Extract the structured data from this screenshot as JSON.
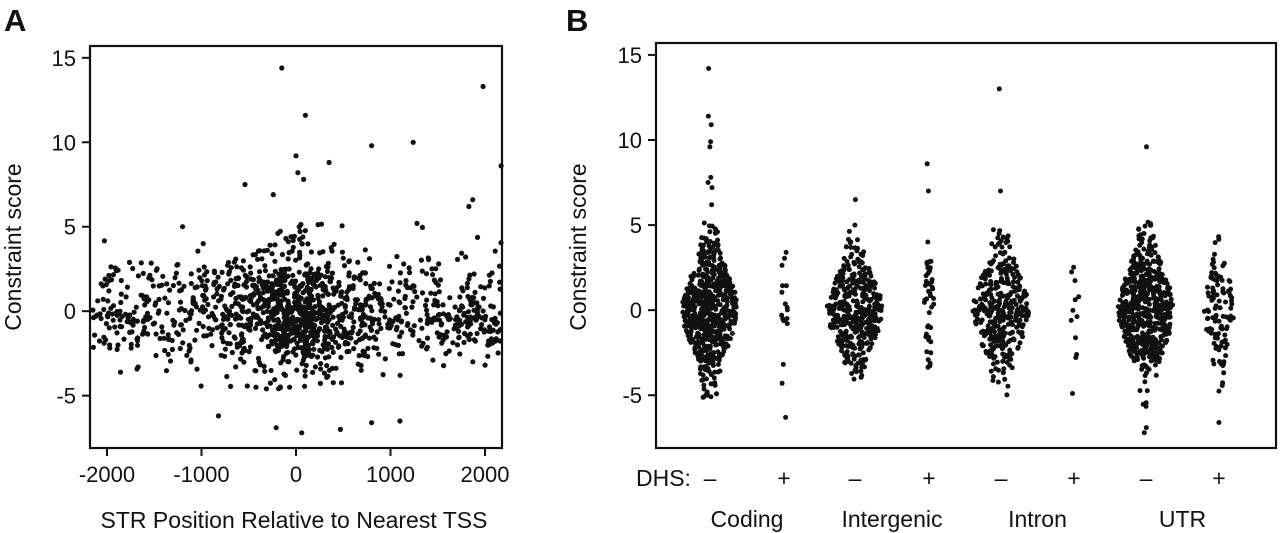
{
  "colors": {
    "points": "#111111",
    "axis": "#111111",
    "background": "#ffffff"
  },
  "chart_data": [
    {
      "panel_label": "A",
      "type": "scatter",
      "title": "",
      "xlabel": "STR Position Relative to Nearest TSS",
      "ylabel": "Constraint score",
      "xlim": [
        -2180,
        2180
      ],
      "ylim": [
        -8.1,
        15.7
      ],
      "xticks": [
        -2000,
        -1000,
        0,
        1000,
        2000
      ],
      "xtick_labels": [
        "-2000",
        "-1000",
        "0",
        "1000",
        "2000"
      ],
      "yticks": [
        -5,
        0,
        5,
        10,
        15
      ],
      "ytick_labels": [
        "-5",
        "0",
        "5",
        "10",
        "15"
      ],
      "grid": false,
      "legend": "none",
      "outliers": [
        {
          "x": -150,
          "y": 14.4
        },
        {
          "x": 100,
          "y": 11.6
        },
        {
          "x": 1980,
          "y": 13.3
        },
        {
          "x": 1240,
          "y": 10.0
        },
        {
          "x": 800,
          "y": 9.8
        },
        {
          "x": 0,
          "y": 9.2
        },
        {
          "x": 350,
          "y": 8.8
        },
        {
          "x": 2170,
          "y": 8.6
        },
        {
          "x": 20,
          "y": 8.2
        },
        {
          "x": 80,
          "y": 7.8
        },
        {
          "x": 1870,
          "y": 6.6
        },
        {
          "x": 1830,
          "y": 6.2
        },
        {
          "x": -540,
          "y": 7.5
        },
        {
          "x": -240,
          "y": 6.9
        },
        {
          "x": -1200,
          "y": 5.0
        },
        {
          "x": 1280,
          "y": 5.2
        },
        {
          "x": 470,
          "y": -7.0
        },
        {
          "x": 60,
          "y": -7.2
        },
        {
          "x": -210,
          "y": -6.9
        },
        {
          "x": -820,
          "y": -6.2
        },
        {
          "x": 1100,
          "y": -6.5
        },
        {
          "x": 800,
          "y": -6.6
        }
      ],
      "bulk_points": {
        "approx_count": 1400,
        "x_range": [
          -2150,
          2170
        ],
        "x_center": 0,
        "y_center": 0,
        "y_typical_range": [
          -4.5,
          5
        ]
      }
    },
    {
      "panel_label": "B",
      "type": "scatter",
      "subtype": "beeswarm",
      "title": "",
      "xlabel": "",
      "ylabel": "Constraint score",
      "ylim": [
        -8.1,
        15.7
      ],
      "yticks": [
        -5,
        0,
        5,
        10,
        15
      ],
      "ytick_labels": [
        "-5",
        "0",
        "5",
        "10",
        "15"
      ],
      "grid": false,
      "legend": "none",
      "dhs_prefix": "DHS:",
      "dhs_symbols": [
        "–",
        "+",
        "–",
        "+",
        "–",
        "+",
        "–",
        "+"
      ],
      "groups": [
        "Coding",
        "Intergenic",
        "Intron",
        "UTR"
      ],
      "series": [
        {
          "group": "Coding",
          "dhs": "–",
          "approx_count": 600,
          "min": -5.8,
          "max": 14.2,
          "outliers": [
            14.2,
            11.4,
            10.9,
            9.9,
            9.6,
            7.8,
            7.5,
            7.2,
            6.2
          ]
        },
        {
          "group": "Coding",
          "dhs": "+",
          "approx_count": 18,
          "min": -6.3,
          "max": 3.8,
          "outliers": [
            -6.3,
            -4.3
          ]
        },
        {
          "group": "Intergenic",
          "dhs": "–",
          "approx_count": 400,
          "min": -4.8,
          "max": 6.5,
          "outliers": [
            6.5,
            5.0
          ]
        },
        {
          "group": "Intergenic",
          "dhs": "+",
          "approx_count": 45,
          "min": -4.0,
          "max": 8.6,
          "outliers": [
            8.6,
            7.0
          ]
        },
        {
          "group": "Intron",
          "dhs": "–",
          "approx_count": 350,
          "min": -6.2,
          "max": 13.0,
          "outliers": [
            13.0,
            7.0
          ]
        },
        {
          "group": "Intron",
          "dhs": "+",
          "approx_count": 12,
          "min": -4.9,
          "max": 3.0,
          "outliers": [
            -4.9
          ]
        },
        {
          "group": "UTR",
          "dhs": "–",
          "approx_count": 550,
          "min": -7.2,
          "max": 9.6,
          "outliers": [
            9.6,
            -7.2,
            -6.9
          ]
        },
        {
          "group": "UTR",
          "dhs": "+",
          "approx_count": 110,
          "min": -6.6,
          "max": 4.9,
          "outliers": [
            -6.6
          ]
        }
      ]
    }
  ]
}
